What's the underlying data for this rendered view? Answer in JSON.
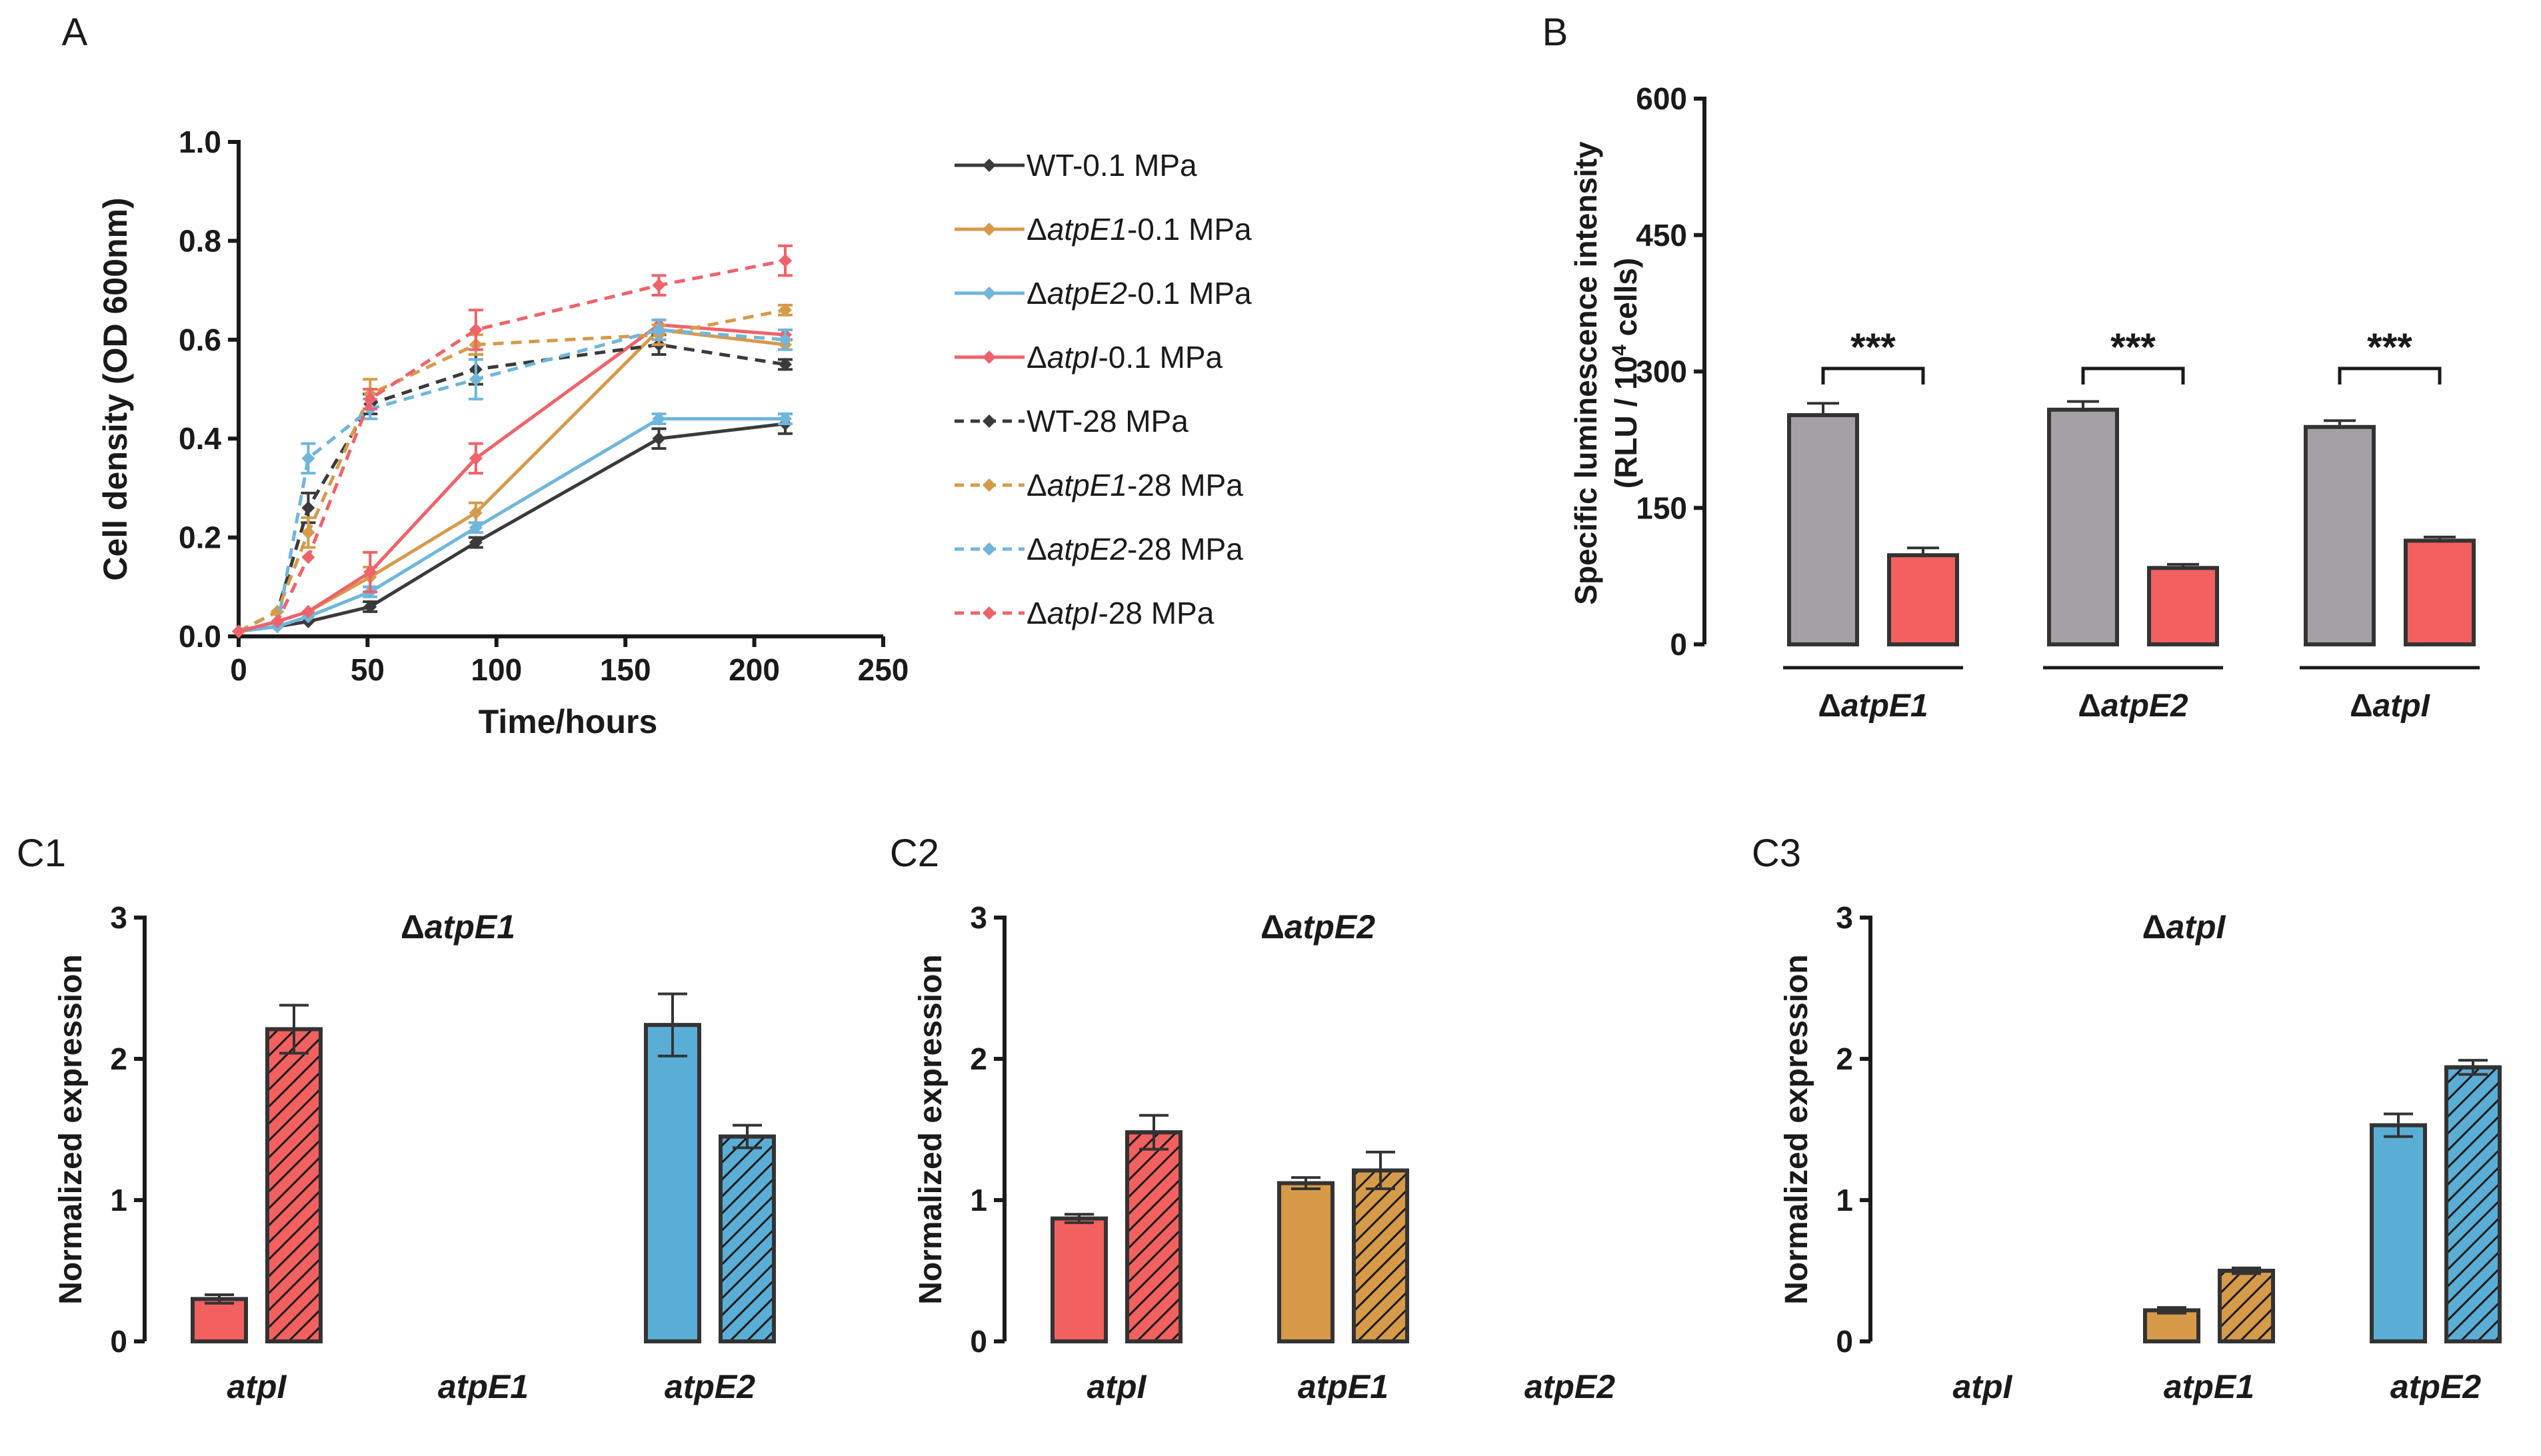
{
  "colors": {
    "wt": "#3a3a3a",
    "atpE1": "#d69a4a",
    "atpE2": "#6fb6dc",
    "atpI": "#f0626a",
    "bar_gray": "#a3a1a6",
    "bar_red": "#f2605f",
    "bar_orange": "#d69a48",
    "bar_blue": "#5aaed6"
  },
  "chart_data": [
    {
      "panel": "A",
      "type": "line",
      "xlabel": "Time/hours",
      "ylabel": "Cell density (OD 600nm)",
      "xlim": [
        0,
        250
      ],
      "ylim": [
        0,
        1.0
      ],
      "xticks": [
        "0",
        "50",
        "100",
        "150",
        "200",
        "250"
      ],
      "yticks": [
        "0.0",
        "0.2",
        "0.4",
        "0.6",
        "0.8",
        "1.0"
      ],
      "series": [
        {
          "name": "WT-0.1 MPa",
          "pre": "",
          "italic": "",
          "post": "WT-0.1 MPa",
          "color": "wt",
          "dash": false,
          "x": [
            0,
            15,
            27,
            51,
            92,
            163,
            212
          ],
          "y": [
            0.01,
            0.02,
            0.03,
            0.06,
            0.19,
            0.4,
            0.43
          ],
          "err": [
            0,
            0,
            0,
            0.01,
            0.01,
            0.02,
            0.02
          ]
        },
        {
          "name": "ΔatpE1-0.1 MPa",
          "pre": "Δ",
          "italic": "atpE1",
          "post": "-0.1 MPa",
          "color": "atpE1",
          "dash": false,
          "x": [
            0,
            15,
            27,
            51,
            92,
            163,
            212
          ],
          "y": [
            0.01,
            0.03,
            0.05,
            0.12,
            0.25,
            0.62,
            0.59
          ],
          "err": [
            0,
            0,
            0,
            0.02,
            0.02,
            0.02,
            0.01
          ]
        },
        {
          "name": "ΔatpE2-0.1 MPa",
          "pre": "Δ",
          "italic": "atpE2",
          "post": "-0.1 MPa",
          "color": "atpE2",
          "dash": false,
          "x": [
            0,
            15,
            27,
            51,
            92,
            163,
            212
          ],
          "y": [
            0.01,
            0.02,
            0.04,
            0.09,
            0.22,
            0.44,
            0.44
          ],
          "err": [
            0,
            0,
            0,
            0.01,
            0.01,
            0.01,
            0.01
          ]
        },
        {
          "name": "ΔatpI-0.1 MPa",
          "pre": "Δ",
          "italic": "atpI",
          "post": "-0.1 MPa",
          "color": "atpI",
          "dash": false,
          "x": [
            0,
            15,
            27,
            51,
            92,
            163,
            212
          ],
          "y": [
            0.01,
            0.03,
            0.05,
            0.13,
            0.36,
            0.63,
            0.61
          ],
          "err": [
            0,
            0,
            0,
            0.04,
            0.03,
            0.01,
            0.01
          ]
        },
        {
          "name": "WT-28 MPa",
          "pre": "",
          "italic": "",
          "post": "WT-28 MPa",
          "color": "wt",
          "dash": true,
          "x": [
            0,
            15,
            27,
            51,
            92,
            163,
            212
          ],
          "y": [
            0.01,
            0.05,
            0.26,
            0.47,
            0.54,
            0.59,
            0.55
          ],
          "err": [
            0,
            0,
            0.03,
            0.02,
            0.03,
            0.02,
            0.01
          ]
        },
        {
          "name": "ΔatpE1-28 MPa",
          "pre": "Δ",
          "italic": "atpE1",
          "post": "-28 MPa",
          "color": "atpE1",
          "dash": true,
          "x": [
            0,
            15,
            27,
            51,
            92,
            163,
            212
          ],
          "y": [
            0.01,
            0.05,
            0.21,
            0.49,
            0.59,
            0.61,
            0.66
          ],
          "err": [
            0,
            0,
            0.03,
            0.03,
            0.02,
            0.02,
            0.01
          ]
        },
        {
          "name": "ΔatpE2-28 MPa",
          "pre": "Δ",
          "italic": "atpE2",
          "post": "-28 MPa",
          "color": "atpE2",
          "dash": true,
          "x": [
            0,
            15,
            27,
            51,
            92,
            163,
            212
          ],
          "y": [
            0.01,
            0.02,
            0.36,
            0.46,
            0.52,
            0.62,
            0.6
          ],
          "err": [
            0,
            0,
            0.03,
            0.02,
            0.04,
            0.02,
            0.02
          ]
        },
        {
          "name": "ΔatpI-28 MPa",
          "pre": "Δ",
          "italic": "atpI",
          "post": "-28 MPa",
          "color": "atpI",
          "dash": true,
          "x": [
            0,
            15,
            27,
            51,
            92,
            163,
            212
          ],
          "y": [
            0.01,
            0.03,
            0.16,
            0.48,
            0.62,
            0.71,
            0.76
          ],
          "err": [
            0,
            0,
            0,
            0.02,
            0.04,
            0.02,
            0.03
          ]
        }
      ]
    },
    {
      "panel": "B",
      "type": "bar",
      "ylabel_line1": "Specific luminescence intensity",
      "ylabel_line2_pre": "(RLU / 10",
      "ylabel_line2_sup": "4",
      "ylabel_line2_post": " cells)",
      "ylim": [
        0,
        600
      ],
      "yticks": [
        "0",
        "150",
        "300",
        "450",
        "600"
      ],
      "groups": [
        {
          "pre": "Δ",
          "italic": "atpE1",
          "values": [
            252,
            98
          ],
          "err": [
            13,
            8
          ],
          "sig": "***"
        },
        {
          "pre": "Δ",
          "italic": "atpE2",
          "values": [
            258,
            84
          ],
          "err": [
            9,
            4
          ],
          "sig": "***"
        },
        {
          "pre": "Δ",
          "italic": "atpI",
          "values": [
            239,
            114
          ],
          "err": [
            7,
            4
          ],
          "sig": "***"
        }
      ],
      "bar_colors": [
        "bar_gray",
        "bar_red"
      ]
    },
    {
      "panel": "C1",
      "type": "bar",
      "title_pre": "Δ",
      "title_italic": "atpE1",
      "ylabel": "Normalized expression",
      "ylim": [
        0,
        3
      ],
      "yticks": [
        "0",
        "1",
        "2",
        "3"
      ],
      "categories": [
        "atpI",
        "atpE1",
        "atpE2"
      ],
      "pairs": [
        {
          "color": "bar_red",
          "values": [
            0.3,
            2.21
          ],
          "err": [
            0.03,
            0.17
          ]
        },
        null,
        {
          "color": "bar_blue",
          "values": [
            2.24,
            1.45
          ],
          "err": [
            0.22,
            0.08
          ]
        }
      ]
    },
    {
      "panel": "C2",
      "type": "bar",
      "title_pre": "Δ",
      "title_italic": "atpE2",
      "ylabel": "Normalized expression",
      "ylim": [
        0,
        3
      ],
      "yticks": [
        "0",
        "1",
        "2",
        "3"
      ],
      "categories": [
        "atpI",
        "atpE1",
        "atpE2"
      ],
      "pairs": [
        {
          "color": "bar_red",
          "values": [
            0.87,
            1.48
          ],
          "err": [
            0.03,
            0.12
          ]
        },
        {
          "color": "bar_orange",
          "values": [
            1.12,
            1.21
          ],
          "err": [
            0.04,
            0.13
          ]
        },
        null
      ]
    },
    {
      "panel": "C3",
      "type": "bar",
      "title_pre": "Δ",
      "title_italic": "atpI",
      "ylabel": "Normalized expression",
      "ylim": [
        0,
        3
      ],
      "yticks": [
        "0",
        "1",
        "2",
        "3"
      ],
      "categories": [
        "atpI",
        "atpE1",
        "atpE2"
      ],
      "pairs": [
        null,
        {
          "color": "bar_orange",
          "values": [
            0.22,
            0.5
          ],
          "err": [
            0.02,
            0.02
          ]
        },
        {
          "color": "bar_blue",
          "values": [
            1.53,
            1.94
          ],
          "err": [
            0.08,
            0.05
          ]
        }
      ]
    }
  ]
}
